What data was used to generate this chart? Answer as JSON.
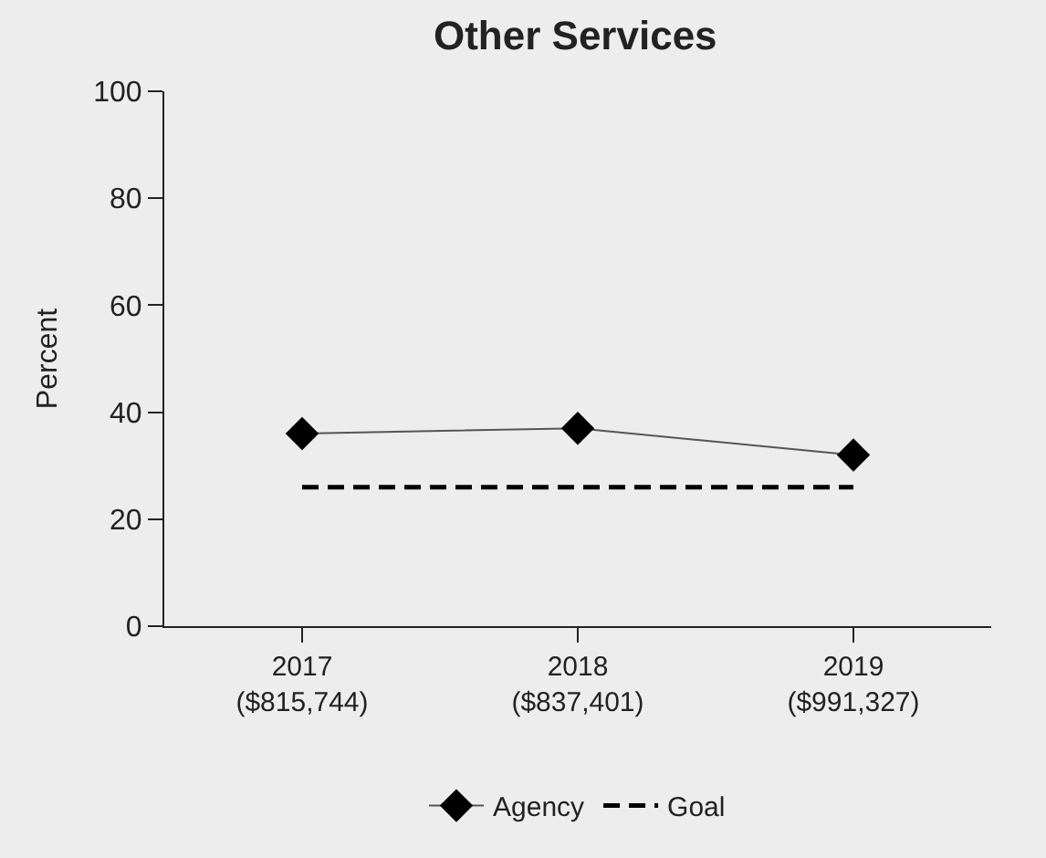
{
  "chart_data": {
    "type": "line",
    "title": "Other Services",
    "ylabel": "Percent",
    "categories": [
      "2017\n($815,744)",
      "2018\n($837,401)",
      "2019\n($991,327)"
    ],
    "series": [
      {
        "name": "Agency",
        "color": "#000000",
        "values": [
          36,
          37,
          32
        ],
        "marker": "diamond",
        "line_style": "solid"
      },
      {
        "name": "Goal",
        "color": "#000000",
        "values": [
          26,
          26,
          26
        ],
        "marker": "none",
        "line_style": "dashed"
      }
    ],
    "ylim": [
      0,
      100
    ],
    "yticks": [
      0,
      20,
      40,
      60,
      80,
      100
    ],
    "grid": false,
    "legend": "bottom"
  }
}
